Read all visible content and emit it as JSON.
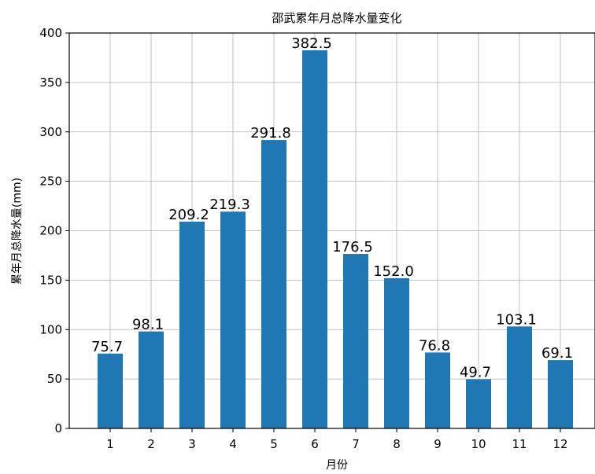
{
  "chart_data": {
    "type": "bar",
    "title": "邵武累年月总降水量变化",
    "xlabel": "月份",
    "ylabel": "累年月总降水量(mm)",
    "categories": [
      "1",
      "2",
      "3",
      "4",
      "5",
      "6",
      "7",
      "8",
      "9",
      "10",
      "11",
      "12"
    ],
    "values": [
      75.7,
      98.1,
      209.2,
      219.3,
      291.8,
      382.5,
      176.5,
      152.0,
      76.8,
      49.7,
      103.1,
      69.1
    ],
    "data_labels": [
      "75.7",
      "98.1",
      "209.2",
      "219.3",
      "291.8",
      "382.5",
      "176.5",
      "152.0",
      "76.8",
      "49.7",
      "103.1",
      "69.1"
    ],
    "yticks": [
      "0",
      "50",
      "100",
      "150",
      "200",
      "250",
      "300",
      "350",
      "400"
    ],
    "ylim": [
      0,
      400
    ],
    "grid": true,
    "bar_color": "#1f77b4"
  }
}
